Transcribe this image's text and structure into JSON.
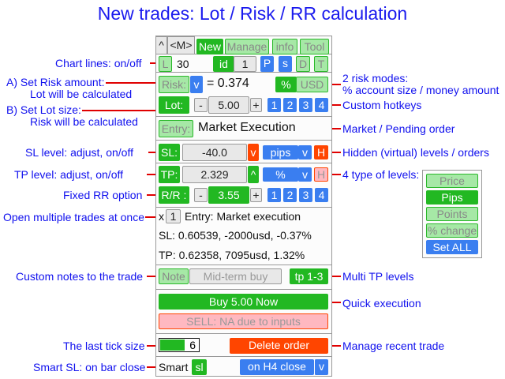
{
  "title": "New trades: Lot / Risk / RR calculation",
  "annotations": {
    "chart_lines": "Chart lines: on/off",
    "set_risk": "A) Set Risk amount:",
    "set_risk_sub": "Lot will be calculated",
    "set_lot": "B) Set Lot size:",
    "set_lot_sub": "Risk will be calculated",
    "sl_level": "SL level: adjust, on/off",
    "tp_level": "TP level: adjust, on/off",
    "fixed_rr": "Fixed RR option",
    "multiple": "Open multiple trades at once",
    "notes": "Custom notes to the trade",
    "tick": "The last tick size",
    "smart_sl": "Smart SL: on bar close",
    "risk_modes": "2 risk modes:",
    "risk_modes_sub": "% account size / money amount",
    "hotkeys": "Custom hotkeys",
    "market_pending": "Market / Pending order",
    "hidden": "Hidden (virtual) levels / orders",
    "four_types": "4 type of levels:",
    "multi_tp": "Multi TP levels",
    "quick": "Quick execution",
    "manage": "Manage recent trade"
  },
  "tabs": {
    "collapse": "^",
    "minimize": "<M>",
    "items": [
      "New",
      "Manage",
      "info",
      "Tool"
    ],
    "active": "New"
  },
  "lines_row": {
    "l": "L",
    "value": "30",
    "id_label": "id",
    "id_value": "1",
    "p": "P",
    "s": "s",
    "d": "D",
    "t": "T"
  },
  "risk_row": {
    "label": "Risk:",
    "dropdown": "v",
    "value": "= 0.374",
    "percent": "%",
    "usd": "USD"
  },
  "lot_row": {
    "label": "Lot:",
    "minus": "-",
    "value": "5.00",
    "plus": "+",
    "hotkeys": [
      "1",
      "2",
      "3",
      "4"
    ]
  },
  "entry_row": {
    "label": "Entry:",
    "value": "Market Execution"
  },
  "sl_row": {
    "label": "SL:",
    "value": "-40.0",
    "toggle": "v",
    "unit": "pips",
    "unit_dropdown": "v",
    "hidden": "H"
  },
  "tp_row": {
    "label": "TP:",
    "value": "2.329",
    "toggle": "^",
    "unit": "%",
    "unit_dropdown": "v",
    "hidden": "H"
  },
  "rr_row": {
    "label": "R/R :",
    "minus": "-",
    "value": "3.55",
    "plus": "+",
    "hotkeys": [
      "1",
      "2",
      "3",
      "4"
    ]
  },
  "info": {
    "x": "x",
    "count": "1",
    "entry": "Entry: Market execution",
    "sl": "SL: 0.60539, -2000usd, -0.37%",
    "tp": "TP: 0.62358, 7095usd, 1.32%"
  },
  "note_row": {
    "label": "Note",
    "placeholder": "Mid-term buy",
    "multi_tp": "tp 1-3"
  },
  "buy": "Buy 5.00 Now",
  "sell": "SELL: NA due to inputs",
  "tick": {
    "value": "6",
    "fill_fraction": 0.65
  },
  "delete": "Delete order",
  "smart": {
    "label": "Smart",
    "sl": "sl",
    "mode": "on H4 close",
    "dropdown": "v"
  },
  "level_types": [
    "Price",
    "Pips",
    "Points",
    "% change",
    "Set ALL"
  ],
  "level_types_selected": "Pips",
  "colors": {
    "green": "#22b822",
    "blue": "#3a7ef0",
    "red": "#ff4500",
    "title": "#1a1aee"
  }
}
